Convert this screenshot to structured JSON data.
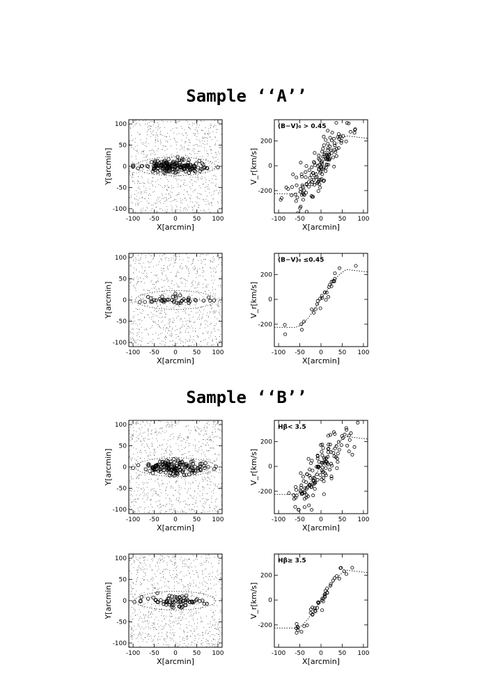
{
  "sections": [
    {
      "title": "Sample ‘‘A’’"
    },
    {
      "title": "Sample ‘‘B’’"
    }
  ],
  "chart_data": [
    {
      "type": "scatter",
      "section": 0,
      "kind": "spatial",
      "xlabel": "X[arcmin]",
      "ylabel": "Y[arcmin]",
      "annotation": "",
      "xlim": [
        -110,
        110
      ],
      "ylim": [
        -110,
        110
      ],
      "xticks": [
        -100,
        -50,
        0,
        50,
        100
      ],
      "yticks": [
        -100,
        -50,
        0,
        50,
        100
      ],
      "selected_count": 170,
      "spread_x": 42,
      "spread_y": 10
    },
    {
      "type": "scatter",
      "section": 0,
      "kind": "velocity",
      "xlabel": "X[arcmin]",
      "ylabel": "V_r[km/s]",
      "annotation": "(B−V)₀ > 0.45",
      "xlim": [
        -110,
        110
      ],
      "ylim": [
        -380,
        370
      ],
      "xticks": [
        -100,
        -50,
        0,
        50,
        100
      ],
      "yticks": [
        -200,
        0,
        200
      ],
      "rotation_curve": {
        "x": [
          -110,
          -60,
          -45,
          -30,
          -15,
          0,
          15,
          30,
          45,
          60,
          110
        ],
        "y": [
          -225,
          -225,
          -205,
          -150,
          -75,
          0,
          75,
          150,
          205,
          240,
          220
        ]
      },
      "selected_count": 150,
      "velocity_scatter": 110
    },
    {
      "type": "scatter",
      "section": 0,
      "kind": "spatial",
      "xlabel": "X[arcmin]",
      "ylabel": "Y[arcmin]",
      "annotation": "",
      "xlim": [
        -110,
        110
      ],
      "ylim": [
        -110,
        110
      ],
      "xticks": [
        -100,
        -50,
        0,
        50,
        100
      ],
      "yticks": [
        -100,
        -50,
        0,
        50,
        100
      ],
      "selected_count": 45,
      "spread_x": 40,
      "spread_y": 7
    },
    {
      "type": "scatter",
      "section": 0,
      "kind": "velocity",
      "xlabel": "X[arcmin]",
      "ylabel": "V_r[km/s]",
      "annotation": "(B−V)₀ ≤0.45",
      "xlim": [
        -110,
        110
      ],
      "ylim": [
        -380,
        370
      ],
      "xticks": [
        -100,
        -50,
        0,
        50,
        100
      ],
      "yticks": [
        -200,
        0,
        200
      ],
      "rotation_curve": {
        "x": [
          -110,
          -60,
          -45,
          -30,
          -15,
          0,
          15,
          30,
          45,
          60,
          110
        ],
        "y": [
          -225,
          -225,
          -205,
          -150,
          -75,
          0,
          75,
          150,
          205,
          240,
          220
        ]
      },
      "selected_count": 30,
      "velocity_scatter": 35
    },
    {
      "type": "scatter",
      "section": 1,
      "kind": "spatial",
      "xlabel": "X[arcmin]",
      "ylabel": "Y[arcmin]",
      "annotation": "",
      "xlim": [
        -110,
        110
      ],
      "ylim": [
        -110,
        110
      ],
      "xticks": [
        -100,
        -50,
        0,
        50,
        100
      ],
      "yticks": [
        -100,
        -50,
        0,
        50,
        100
      ],
      "selected_count": 150,
      "spread_x": 40,
      "spread_y": 10
    },
    {
      "type": "scatter",
      "section": 1,
      "kind": "velocity",
      "xlabel": "X[arcmin]",
      "ylabel": "V_r[km/s]",
      "annotation": "Hβ< 3.5",
      "xlim": [
        -110,
        110
      ],
      "ylim": [
        -380,
        370
      ],
      "xticks": [
        -100,
        -50,
        0,
        50,
        100
      ],
      "yticks": [
        -200,
        0,
        200
      ],
      "rotation_curve": {
        "x": [
          -110,
          -60,
          -45,
          -30,
          -15,
          0,
          15,
          30,
          45,
          60,
          110
        ],
        "y": [
          -225,
          -225,
          -205,
          -150,
          -75,
          0,
          75,
          150,
          205,
          240,
          220
        ]
      },
      "selected_count": 140,
      "velocity_scatter": 110
    },
    {
      "type": "scatter",
      "section": 1,
      "kind": "spatial",
      "xlabel": "X[arcmin]",
      "ylabel": "Y[arcmin]",
      "annotation": "",
      "xlim": [
        -110,
        110
      ],
      "ylim": [
        -110,
        110
      ],
      "xticks": [
        -100,
        -50,
        0,
        50,
        100
      ],
      "yticks": [
        -100,
        -50,
        0,
        50,
        100
      ],
      "selected_count": 70,
      "spread_x": 38,
      "spread_y": 9
    },
    {
      "type": "scatter",
      "section": 1,
      "kind": "velocity",
      "xlabel": "X[arcmin]",
      "ylabel": "V_r[km/s]",
      "annotation": "Hβ≥ 3.5",
      "xlim": [
        -110,
        110
      ],
      "ylim": [
        -380,
        370
      ],
      "xticks": [
        -100,
        -50,
        0,
        50,
        100
      ],
      "yticks": [
        -200,
        0,
        200
      ],
      "rotation_curve": {
        "x": [
          -110,
          -60,
          -45,
          -30,
          -15,
          0,
          15,
          30,
          45,
          60,
          110
        ],
        "y": [
          -225,
          -225,
          -205,
          -150,
          -75,
          0,
          75,
          150,
          205,
          240,
          220
        ]
      },
      "selected_count": 45,
      "velocity_scatter": 35
    }
  ]
}
